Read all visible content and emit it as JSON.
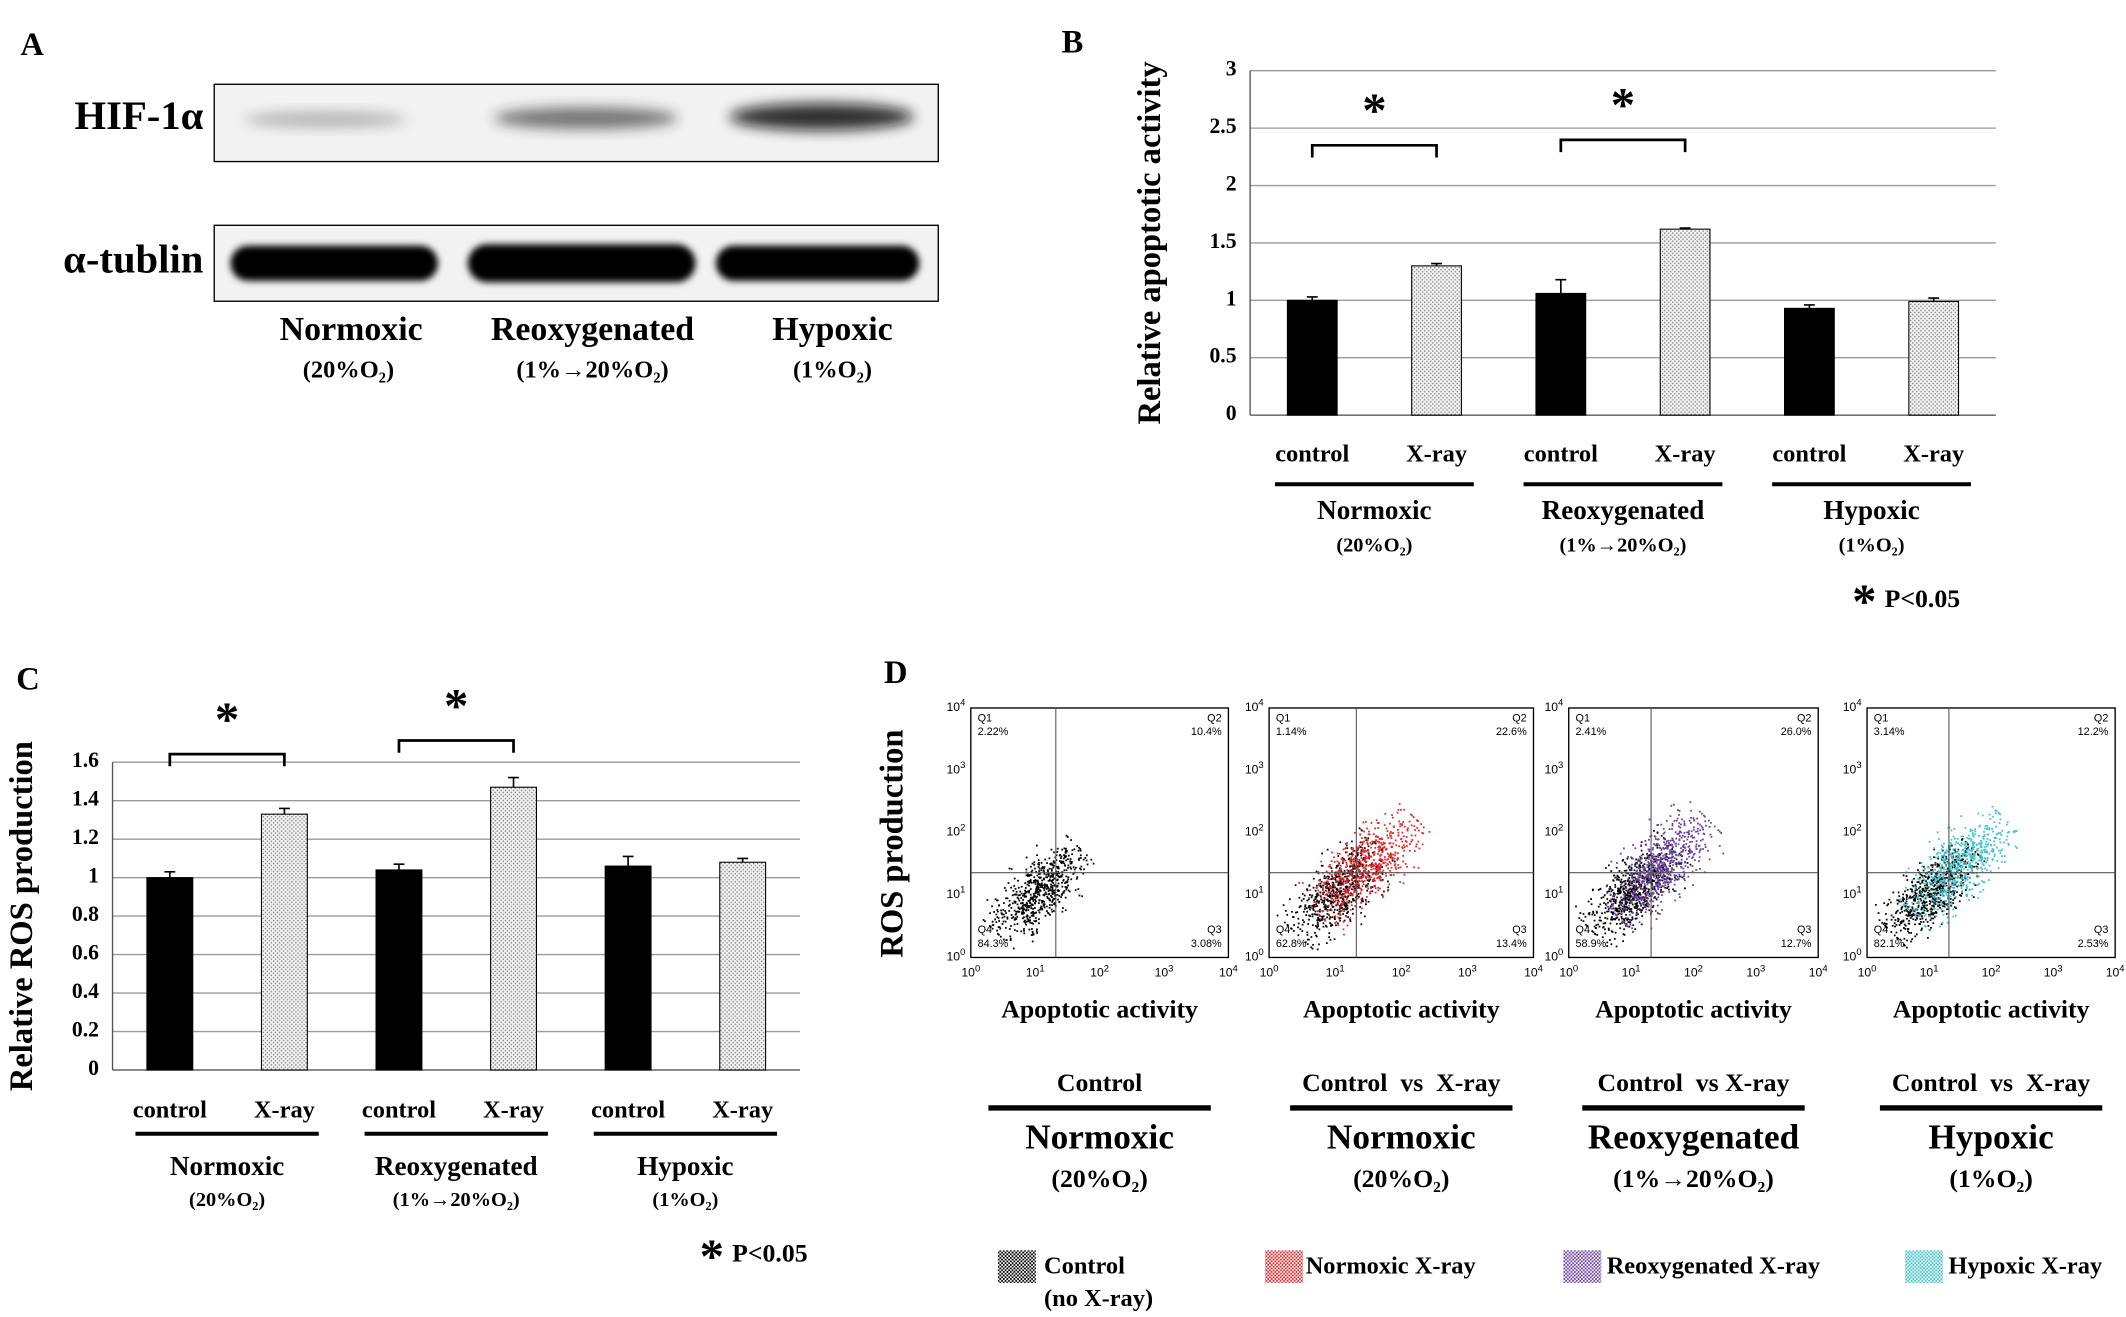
{
  "panel_a": {
    "panel": "A",
    "bands": [
      "HIF-1α",
      "α-tublin"
    ],
    "lanes": [
      "Normoxic",
      "Reoxygenated",
      "Hypoxic"
    ],
    "lane_notes": [
      "(20%O₂)",
      "(1%→20%O₂)",
      "(1%O₂)"
    ]
  },
  "chart_data": [
    {
      "type": "bar",
      "panel": "B",
      "y_label": "Relative apoptotic activity",
      "categories": [
        "Normoxic",
        "Reoxygenated",
        "Hypoxic"
      ],
      "category_notes": [
        "(20%O₂)",
        "(1%→20%O₂)",
        "(1%O₂)"
      ],
      "series": [
        {
          "name": "control",
          "color": "#000000",
          "values": [
            1.0,
            1.06,
            0.93
          ],
          "errors": [
            0.03,
            0.12,
            0.03
          ]
        },
        {
          "name": "X-ray",
          "color": "#7a7a7a",
          "pattern": "dots",
          "values": [
            1.3,
            1.62,
            0.99
          ],
          "errors": [
            0.02,
            0.01,
            0.03
          ]
        }
      ],
      "ylim": [
        0,
        3
      ],
      "yticks": [
        0,
        0.5,
        1,
        1.5,
        2,
        2.5,
        3
      ],
      "grid": true,
      "significant": [
        true,
        true,
        false
      ],
      "significance_mark": "*",
      "note": "P<0.05"
    },
    {
      "type": "bar",
      "panel": "C",
      "y_label": "Relative ROS production",
      "categories": [
        "Normoxic",
        "Reoxygenated",
        "Hypoxic"
      ],
      "category_notes": [
        "(20%O₂)",
        "(1%→20%O₂)",
        "(1%O₂)"
      ],
      "series": [
        {
          "name": "control",
          "color": "#000000",
          "values": [
            1.0,
            1.04,
            1.06
          ],
          "errors": [
            0.03,
            0.03,
            0.05
          ]
        },
        {
          "name": "X-ray",
          "color": "#7a7a7a",
          "pattern": "dots",
          "values": [
            1.33,
            1.47,
            1.08
          ],
          "errors": [
            0.03,
            0.05,
            0.02
          ]
        }
      ],
      "ylim": [
        0,
        1.6
      ],
      "yticks": [
        0,
        0.2,
        0.4,
        0.6,
        0.8,
        1,
        1.2,
        1.4,
        1.6
      ],
      "grid": true,
      "significant": [
        true,
        true,
        false
      ],
      "significance_mark": "*",
      "note": "P<0.05"
    }
  ],
  "panel_d": {
    "panel": "D",
    "y_label": "ROS production",
    "x_label": "Apoptotic activity",
    "tick_base": "10",
    "tick_exponents": [
      "0",
      "1",
      "2",
      "3",
      "4"
    ],
    "quadrant_names": [
      "Q1",
      "Q2",
      "Q3",
      "Q4"
    ],
    "plots": [
      {
        "header": "Control",
        "condition": "Normoxic",
        "note": "(20%O₂)",
        "quadrants": [
          "2.22%",
          "10.4%",
          "3.08%",
          "84.3%"
        ],
        "series": [
          0
        ]
      },
      {
        "header": "Control  vs  X-ray",
        "condition": "Normoxic",
        "note": "(20%O₂)",
        "quadrants": [
          "1.14%",
          "22.6%",
          "13.4%",
          "62.8%"
        ],
        "series": [
          0,
          1
        ]
      },
      {
        "header": "Control  vs X-ray",
        "condition": "Reoxygenated",
        "note": "(1%→20%O₂)",
        "quadrants": [
          "2.41%",
          "26.0%",
          "12.7%",
          "58.9%"
        ],
        "series": [
          0,
          2
        ]
      },
      {
        "header": "Control  vs  X-ray",
        "condition": "Hypoxic",
        "note": "(1%O₂)",
        "quadrants": [
          "3.14%",
          "12.2%",
          "2.53%",
          "82.1%"
        ],
        "series": [
          0,
          3
        ]
      }
    ],
    "legend": [
      {
        "name": "Control",
        "note": "(no X-ray)",
        "color": "#000000"
      },
      {
        "name": "Normoxic X-ray",
        "color": "#e8262a"
      },
      {
        "name": "Reoxygenated X-ray",
        "color": "#6a3fa0"
      },
      {
        "name": "Hypoxic X-ray",
        "color": "#3cc3cc"
      }
    ]
  }
}
